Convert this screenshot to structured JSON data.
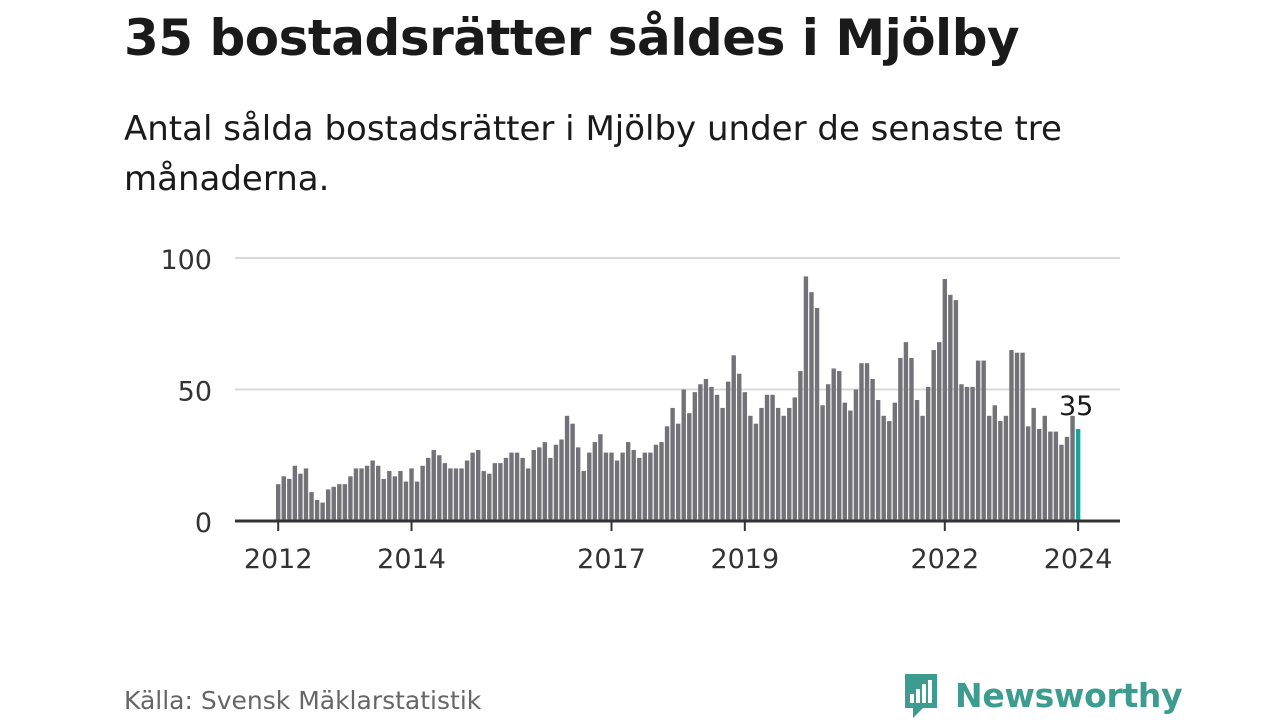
{
  "title": "35 bostadsrätter såldes i Mjölby",
  "subtitle": "Antal sålda bostadsrätter i Mjölby under de senaste tre månaderna.",
  "source": "Källa: Svensk Mäklarstatistik",
  "brand": {
    "name": "Newsworthy",
    "color": "#3b9c8f",
    "icon": "newsworthy-logo-icon"
  },
  "colors": {
    "bar": "#737278",
    "highlight": "#17a39d",
    "grid": "#d9d9d9",
    "axis": "#333333"
  },
  "chart_data": {
    "type": "bar",
    "title": "35 bostadsrätter såldes i Mjölby",
    "xlabel": "",
    "ylabel": "",
    "ylim": [
      0,
      100
    ],
    "yticks": [
      0,
      50,
      100
    ],
    "x_tick_labels": [
      {
        "label": "2012",
        "index": 0
      },
      {
        "label": "2014",
        "index": 24
      },
      {
        "label": "2017",
        "index": 60
      },
      {
        "label": "2019",
        "index": 84
      },
      {
        "label": "2022",
        "index": 120
      },
      {
        "label": "2024",
        "index": 144
      }
    ],
    "highlight_label": "35",
    "highlight_index": 144,
    "values": [
      14,
      17,
      16,
      21,
      18,
      20,
      11,
      8,
      7,
      12,
      13,
      14,
      14,
      17,
      20,
      20,
      21,
      23,
      21,
      16,
      19,
      17,
      19,
      15,
      20,
      15,
      21,
      24,
      27,
      25,
      22,
      20,
      20,
      20,
      23,
      26,
      27,
      19,
      18,
      22,
      22,
      24,
      26,
      26,
      24,
      20,
      27,
      28,
      30,
      24,
      29,
      31,
      40,
      37,
      28,
      19,
      26,
      30,
      33,
      26,
      26,
      23,
      26,
      30,
      27,
      24,
      26,
      26,
      29,
      30,
      36,
      43,
      37,
      50,
      41,
      49,
      52,
      54,
      51,
      48,
      43,
      53,
      63,
      56,
      49,
      40,
      37,
      43,
      48,
      48,
      43,
      40,
      43,
      47,
      57,
      93,
      87,
      81,
      44,
      52,
      58,
      57,
      45,
      42,
      50,
      60,
      60,
      54,
      46,
      40,
      38,
      45,
      62,
      68,
      62,
      46,
      40,
      51,
      65,
      68,
      92,
      86,
      84,
      52,
      51,
      51,
      61,
      61,
      40,
      44,
      38,
      40,
      65,
      64,
      64,
      36,
      43,
      35,
      40,
      34,
      34,
      29,
      32,
      40,
      35
    ]
  }
}
